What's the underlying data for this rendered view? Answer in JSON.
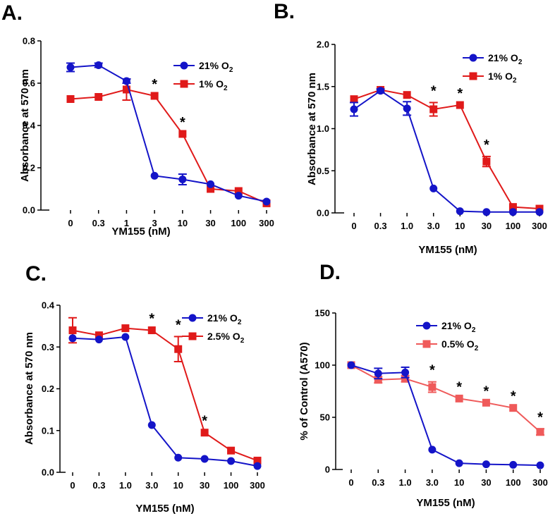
{
  "chart_data": [
    {
      "type": "line",
      "panel": "A.",
      "xlabel": "YM155 (nM)",
      "ylabel": "Absorbance at 570 nm",
      "categories": [
        "0",
        "0.3",
        "1",
        "3",
        "10",
        "30",
        "100",
        "300"
      ],
      "ylim": [
        0,
        0.8
      ],
      "yticks": [
        "0.0",
        "0.2",
        "0.4",
        "0.6",
        "0.8"
      ],
      "series": [
        {
          "name": "21%",
          "sub": "2",
          "color": "#1414c8",
          "marker": "circle",
          "values": [
            0.675,
            0.685,
            0.61,
            0.162,
            0.145,
            0.122,
            0.068,
            0.04
          ],
          "errors": [
            0.02,
            0.01,
            0.01,
            0.0,
            0.025,
            0.0,
            0.0,
            0.0
          ]
        },
        {
          "name": "1%",
          "sub": "2",
          "color": "#e01a1a",
          "marker": "square",
          "values": [
            0.525,
            0.535,
            0.57,
            0.54,
            0.36,
            0.1,
            0.09,
            0.032
          ],
          "errors": [
            0.0,
            0.0,
            0.05,
            0.0,
            0.0,
            0.0,
            0.0,
            0.0
          ]
        }
      ],
      "asterisks": [
        3,
        4
      ]
    },
    {
      "type": "line",
      "panel": "B.",
      "xlabel": "YM155 (nM)",
      "ylabel": "Absorbance at 570 nm",
      "categories": [
        "0",
        "0.3",
        "1.0",
        "3.0",
        "10",
        "30",
        "100",
        "300"
      ],
      "ylim": [
        0,
        2.0
      ],
      "yticks": [
        "0.0",
        "0.5",
        "1.0",
        "1.5",
        "2.0"
      ],
      "series": [
        {
          "name": "21%",
          "sub": "2",
          "color": "#1414c8",
          "marker": "circle",
          "values": [
            1.23,
            1.45,
            1.24,
            0.29,
            0.02,
            0.01,
            0.01,
            0.01
          ],
          "errors": [
            0.08,
            0.02,
            0.08,
            0.0,
            0.0,
            0.0,
            0.0,
            0.0
          ]
        },
        {
          "name": "1%",
          "sub": "2",
          "color": "#e01a1a",
          "marker": "square",
          "values": [
            1.35,
            1.46,
            1.4,
            1.23,
            1.28,
            0.61,
            0.07,
            0.05
          ],
          "errors": [
            0.0,
            0.0,
            0.0,
            0.08,
            0.0,
            0.06,
            0.0,
            0.0
          ]
        }
      ],
      "asterisks": [
        3,
        4,
        5
      ]
    },
    {
      "type": "line",
      "panel": "C.",
      "xlabel": "YM155 (nM)",
      "ylabel": "Absorbance at 570 nm",
      "categories": [
        "0",
        "0.3",
        "1.0",
        "3.0",
        "10",
        "30",
        "100",
        "300"
      ],
      "ylim": [
        0,
        0.4
      ],
      "yticks": [
        "0.0",
        "0.1",
        "0.2",
        "0.3",
        "0.4"
      ],
      "series": [
        {
          "name": "21%",
          "sub": "2",
          "color": "#1414c8",
          "marker": "circle",
          "values": [
            0.321,
            0.318,
            0.324,
            0.113,
            0.035,
            0.032,
            0.027,
            0.015
          ],
          "errors": [
            0.0,
            0.0,
            0.0,
            0.0,
            0.0,
            0.0,
            0.0,
            0.0
          ]
        },
        {
          "name": "2.5%",
          "sub": "2",
          "color": "#e01a1a",
          "marker": "square",
          "values": [
            0.34,
            0.328,
            0.345,
            0.34,
            0.295,
            0.095,
            0.052,
            0.028
          ],
          "errors": [
            0.03,
            0.0,
            0.0,
            0.0,
            0.03,
            0.0,
            0.0,
            0.0
          ]
        }
      ],
      "asterisks": [
        3,
        4,
        5
      ]
    },
    {
      "type": "line",
      "panel": "D.",
      "xlabel": "YM155 (nM)",
      "ylabel": "% of Control (A570)",
      "categories": [
        "0",
        "0.3",
        "1.0",
        "3.0",
        "10",
        "30",
        "100",
        "300"
      ],
      "ylim": [
        0,
        150
      ],
      "yticks": [
        "0",
        "50",
        "100",
        "150"
      ],
      "series": [
        {
          "name": "21%",
          "sub": "2",
          "color": "#1414c8",
          "marker": "circle",
          "values": [
            100,
            92,
            93,
            19,
            6,
            5,
            4.5,
            4
          ],
          "errors": [
            0,
            5,
            5,
            0,
            0,
            0,
            0,
            0
          ]
        },
        {
          "name": "0.5%",
          "sub": "2",
          "color": "#ef5a5a",
          "marker": "square",
          "values": [
            100,
            86,
            87,
            79,
            68,
            64,
            59,
            36
          ],
          "errors": [
            0,
            3,
            3,
            5,
            0,
            0,
            0,
            3
          ]
        }
      ],
      "asterisks": [
        3,
        4,
        5,
        6,
        7
      ]
    }
  ],
  "legend_suffix": "O"
}
